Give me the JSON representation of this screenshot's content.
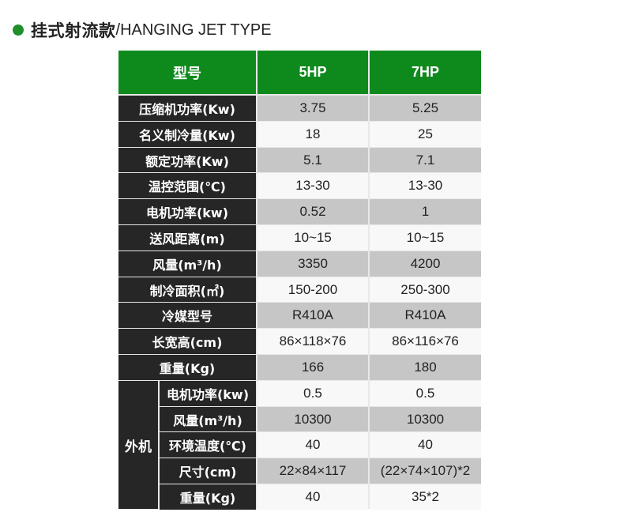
{
  "title": {
    "cn": "挂式射流款",
    "slash": "/",
    "en": "HANGING JET TYPE"
  },
  "table": {
    "headers": [
      "型号",
      "5HP",
      "7HP"
    ],
    "rows": [
      {
        "label": "压缩机功率(Kw)",
        "v1": "3.75",
        "v2": "5.25"
      },
      {
        "label": "名义制冷量(Kw)",
        "v1": "18",
        "v2": "25"
      },
      {
        "label": "额定功率(Kw)",
        "v1": "5.1",
        "v2": "7.1"
      },
      {
        "label": "温控范围(℃)",
        "v1": "13-30",
        "v2": "13-30"
      },
      {
        "label": "电机功率(kw)",
        "v1": "0.52",
        "v2": "1"
      },
      {
        "label": "送风距离(m)",
        "v1": "10~15",
        "v2": "10~15"
      },
      {
        "label": "风量(m³/h)",
        "v1": "3350",
        "v2": "4200"
      },
      {
        "label": "制冷面积(㎡)",
        "v1": "150-200",
        "v2": "250-300"
      },
      {
        "label": "冷媒型号",
        "v1": "R410A",
        "v2": "R410A"
      },
      {
        "label": "长宽高(cm)",
        "v1": "86×118×76",
        "v2": "86×116×76"
      },
      {
        "label": "重量(Kg)",
        "v1": "166",
        "v2": "180"
      }
    ],
    "outdoor_group_label": "外机",
    "outdoor_rows": [
      {
        "label": "电机功率(kw)",
        "v1": "0.5",
        "v2": "0.5"
      },
      {
        "label": "风量(m³/h)",
        "v1": "10300",
        "v2": "10300"
      },
      {
        "label": "环境温度(℃)",
        "v1": "40",
        "v2": "40"
      },
      {
        "label": "尺寸(cm)",
        "v1": "22×84×117",
        "v2": "(22×74×107)*2"
      },
      {
        "label": "重量(Kg)",
        "v1": "40",
        "v2": "35*2"
      }
    ]
  },
  "colors": {
    "header_green": "#0e8a1d",
    "label_dark": "#262626",
    "stripe_gray": "#c6c6c6",
    "dot_green": "#1f8f2a"
  }
}
